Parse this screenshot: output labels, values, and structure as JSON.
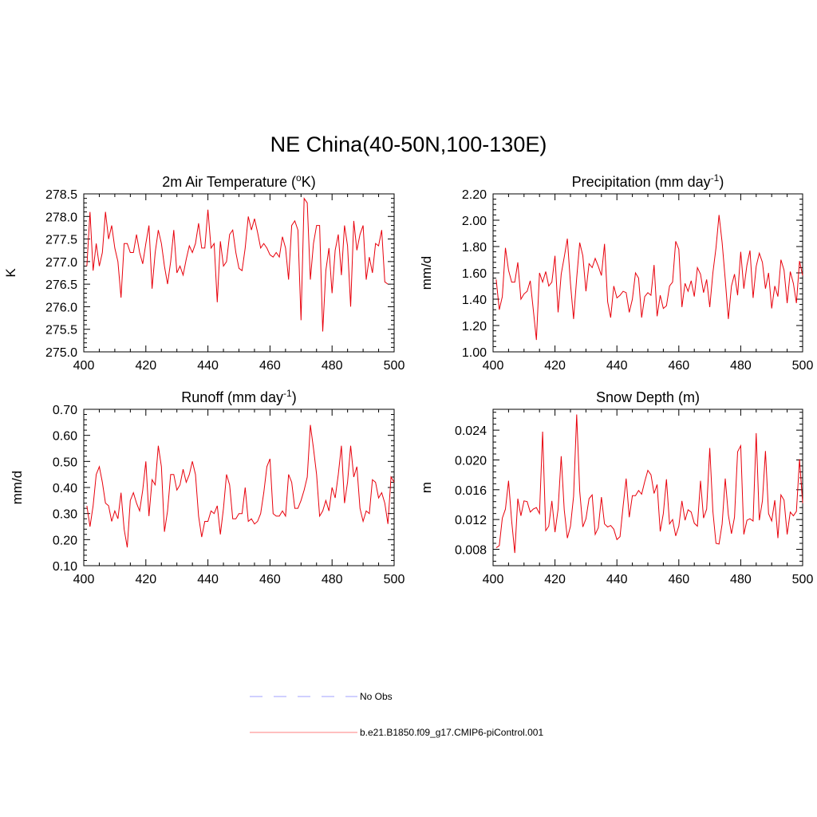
{
  "figure_title": "NE China(40-50N,100-130E)",
  "legend": [
    {
      "label": "No Obs",
      "color": "#b3b3ff",
      "style": "dashed"
    },
    {
      "label": "b.e21.B1850.f09_g17.CMIP6-piControl.001",
      "color": "#ff9999",
      "style": "solid"
    }
  ],
  "line_color": "#e8000b",
  "chart_data": [
    {
      "type": "line",
      "title": "2m Air Temperature (°K)",
      "title_main": "2m Air Temperature (",
      "title_sup": "o",
      "title_end": "K)",
      "ylabel": "K",
      "xlim": [
        400,
        500
      ],
      "ylim": [
        275.0,
        278.5
      ],
      "xticks": [
        400,
        420,
        440,
        460,
        480,
        500
      ],
      "yticks": [
        "275.0",
        "275.5",
        "276.0",
        "276.5",
        "277.0",
        "277.5",
        "278.0",
        "278.5"
      ],
      "x_start": 401,
      "values": [
        276.9,
        278.1,
        276.8,
        277.4,
        276.9,
        277.2,
        278.1,
        277.5,
        277.8,
        277.3,
        277.0,
        276.2,
        277.4,
        277.4,
        277.2,
        277.2,
        277.6,
        277.2,
        276.95,
        277.4,
        277.8,
        276.4,
        277.2,
        277.7,
        277.4,
        276.9,
        276.5,
        277.0,
        277.7,
        276.75,
        276.9,
        276.7,
        277.05,
        277.35,
        277.2,
        277.4,
        277.85,
        277.3,
        277.3,
        278.15,
        277.3,
        277.4,
        276.1,
        277.45,
        276.9,
        277.0,
        277.6,
        277.7,
        277.2,
        276.85,
        276.8,
        277.3,
        278.0,
        277.7,
        277.95,
        277.65,
        277.3,
        277.4,
        277.3,
        277.15,
        277.1,
        277.2,
        277.1,
        277.55,
        277.3,
        276.6,
        277.8,
        277.9,
        277.7,
        275.7,
        278.4,
        278.3,
        276.6,
        277.4,
        277.8,
        277.8,
        275.45,
        276.8,
        277.3,
        276.3,
        277.25,
        277.6,
        276.7,
        277.8,
        277.35,
        276.0,
        277.9,
        277.25,
        277.6,
        277.8,
        276.6,
        277.1,
        276.75,
        277.4,
        277.35,
        277.7,
        276.55,
        276.5
      ]
    },
    {
      "type": "line",
      "title": "Precipitation (mm day-1)",
      "title_main": "Precipitation (mm day",
      "title_sup": "-1",
      "title_end": ")",
      "ylabel": "mm/d",
      "xlim": [
        400,
        500
      ],
      "ylim": [
        1.0,
        2.2
      ],
      "xticks": [
        400,
        420,
        440,
        460,
        480,
        500
      ],
      "yticks": [
        "1.00",
        "1.20",
        "1.40",
        "1.60",
        "1.80",
        "2.00",
        "2.20"
      ],
      "x_start": 401,
      "values": [
        1.55,
        1.32,
        1.42,
        1.79,
        1.62,
        1.53,
        1.53,
        1.68,
        1.4,
        1.44,
        1.46,
        1.54,
        1.32,
        1.09,
        1.6,
        1.53,
        1.61,
        1.5,
        1.53,
        1.73,
        1.3,
        1.59,
        1.72,
        1.86,
        1.52,
        1.25,
        1.56,
        1.83,
        1.73,
        1.46,
        1.67,
        1.64,
        1.71,
        1.65,
        1.58,
        1.82,
        1.38,
        1.26,
        1.5,
        1.41,
        1.43,
        1.46,
        1.45,
        1.3,
        1.4,
        1.6,
        1.56,
        1.26,
        1.42,
        1.45,
        1.43,
        1.66,
        1.27,
        1.43,
        1.33,
        1.35,
        1.5,
        1.53,
        1.84,
        1.78,
        1.34,
        1.52,
        1.46,
        1.54,
        1.42,
        1.64,
        1.59,
        1.45,
        1.55,
        1.34,
        1.6,
        1.79,
        2.04,
        1.83,
        1.55,
        1.25,
        1.5,
        1.59,
        1.43,
        1.76,
        1.48,
        1.66,
        1.77,
        1.41,
        1.65,
        1.75,
        1.68,
        1.48,
        1.6,
        1.33,
        1.5,
        1.42,
        1.7,
        1.62,
        1.37,
        1.61,
        1.52,
        1.37,
        1.69,
        1.58
      ]
    },
    {
      "type": "line",
      "title": "Runoff (mm day-1)",
      "title_main": "Runoff (mm day",
      "title_sup": "-1",
      "title_end": ")",
      "ylabel": "mm/d",
      "xlim": [
        400,
        500
      ],
      "ylim": [
        0.1,
        0.7
      ],
      "xticks": [
        400,
        420,
        440,
        460,
        480,
        500
      ],
      "yticks": [
        "0.10",
        "0.20",
        "0.30",
        "0.40",
        "0.50",
        "0.60",
        "0.70"
      ],
      "x_start": 401,
      "values": [
        0.33,
        0.25,
        0.33,
        0.45,
        0.48,
        0.42,
        0.34,
        0.33,
        0.27,
        0.31,
        0.28,
        0.38,
        0.24,
        0.17,
        0.35,
        0.38,
        0.34,
        0.31,
        0.39,
        0.5,
        0.29,
        0.43,
        0.41,
        0.56,
        0.48,
        0.23,
        0.31,
        0.45,
        0.45,
        0.39,
        0.41,
        0.47,
        0.42,
        0.45,
        0.5,
        0.45,
        0.29,
        0.21,
        0.27,
        0.27,
        0.31,
        0.3,
        0.33,
        0.22,
        0.32,
        0.45,
        0.41,
        0.28,
        0.28,
        0.3,
        0.3,
        0.4,
        0.27,
        0.28,
        0.26,
        0.27,
        0.3,
        0.38,
        0.48,
        0.51,
        0.3,
        0.29,
        0.29,
        0.31,
        0.29,
        0.45,
        0.42,
        0.32,
        0.32,
        0.35,
        0.39,
        0.44,
        0.64,
        0.55,
        0.45,
        0.29,
        0.31,
        0.35,
        0.31,
        0.4,
        0.36,
        0.45,
        0.56,
        0.34,
        0.42,
        0.56,
        0.44,
        0.48,
        0.32,
        0.27,
        0.31,
        0.3,
        0.43,
        0.42,
        0.36,
        0.38,
        0.34,
        0.26,
        0.44,
        0.42
      ]
    },
    {
      "type": "line",
      "title": "Snow Depth (m)",
      "title_main": "Snow Depth (m)",
      "title_sup": "",
      "title_end": "",
      "ylabel": "m",
      "xlim": [
        400,
        500
      ],
      "ylim": [
        0.0058,
        0.0268
      ],
      "xticks": [
        400,
        420,
        440,
        460,
        480,
        500
      ],
      "yticks": [
        "0.008",
        "0.012",
        "0.016",
        "0.020",
        "0.024"
      ],
      "ytick_values": [
        0.008,
        0.012,
        0.016,
        0.02,
        0.024
      ],
      "x_start": 401,
      "values": [
        0.0082,
        0.0085,
        0.0122,
        0.0134,
        0.0172,
        0.0118,
        0.0075,
        0.0148,
        0.0125,
        0.0145,
        0.0144,
        0.013,
        0.0134,
        0.0136,
        0.0128,
        0.0238,
        0.0105,
        0.0111,
        0.0145,
        0.0103,
        0.0134,
        0.0205,
        0.0133,
        0.0095,
        0.0111,
        0.0151,
        0.0261,
        0.0158,
        0.011,
        0.0121,
        0.0148,
        0.0153,
        0.01,
        0.0109,
        0.015,
        0.0114,
        0.011,
        0.0112,
        0.0107,
        0.0093,
        0.0097,
        0.0138,
        0.0175,
        0.0123,
        0.0152,
        0.0152,
        0.0159,
        0.0154,
        0.0171,
        0.0186,
        0.018,
        0.0155,
        0.0167,
        0.0104,
        0.0128,
        0.0174,
        0.0114,
        0.012,
        0.0098,
        0.0111,
        0.0145,
        0.0119,
        0.0133,
        0.013,
        0.0115,
        0.0111,
        0.0172,
        0.0122,
        0.0134,
        0.0216,
        0.0131,
        0.0088,
        0.0087,
        0.0114,
        0.0175,
        0.0126,
        0.0101,
        0.0123,
        0.0211,
        0.0219,
        0.01,
        0.0119,
        0.0121,
        0.0118,
        0.0236,
        0.0119,
        0.0145,
        0.0212,
        0.0128,
        0.0118,
        0.0146,
        0.0095,
        0.0153,
        0.0146,
        0.01,
        0.013,
        0.0125,
        0.0131,
        0.0201,
        0.0142
      ]
    }
  ]
}
